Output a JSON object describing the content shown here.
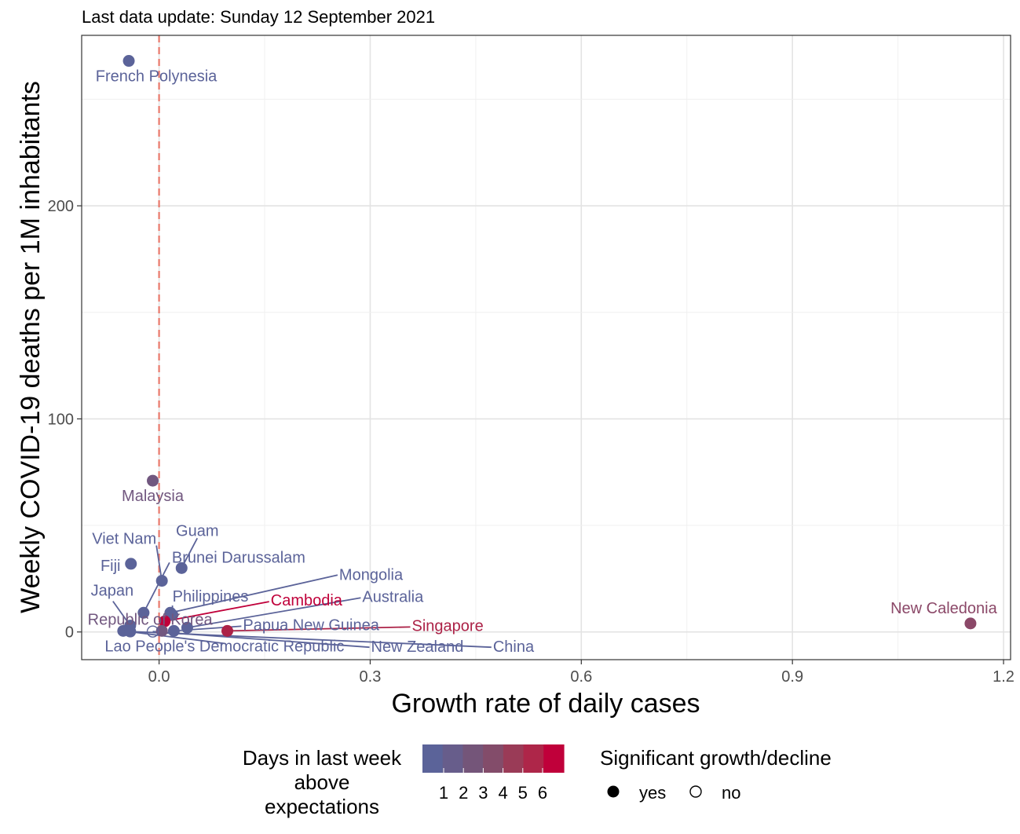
{
  "chart_data": {
    "type": "scatter",
    "subtitle": "Last data update: Sunday 12 September 2021",
    "xlabel": "Growth rate of daily cases",
    "ylabel": "Weekly COVID-19 deaths per 1M inhabitants",
    "xlim": [
      -0.11,
      1.21
    ],
    "ylim": [
      -13,
      280
    ],
    "x_ticks": [
      0.0,
      0.3,
      0.6,
      0.9,
      1.2
    ],
    "x_tick_labels": [
      "0.0",
      "0.3",
      "0.6",
      "0.9",
      "1.2"
    ],
    "y_ticks": [
      0,
      100,
      200
    ],
    "y_tick_labels": [
      "0",
      "100",
      "200"
    ],
    "grid": true,
    "reference_line": {
      "x": 0,
      "style": "dashed",
      "color": "#e8786b"
    },
    "points": [
      {
        "name": "French Polynesia",
        "x": -0.043,
        "y": 268,
        "days": 1,
        "significant": true,
        "color": "#5b6399"
      },
      {
        "name": "Malaysia",
        "x": -0.009,
        "y": 71,
        "days": 2,
        "significant": true,
        "color": "#71577f"
      },
      {
        "name": "Guam",
        "x": 0.032,
        "y": 30,
        "days": 1,
        "significant": true,
        "color": "#5b6399"
      },
      {
        "name": "Fiji",
        "x": -0.04,
        "y": 32,
        "days": 1,
        "significant": true,
        "color": "#5b6399"
      },
      {
        "name": "Viet Nam",
        "x": 0.004,
        "y": 24,
        "days": 1,
        "significant": true,
        "color": "#5b6399"
      },
      {
        "name": "Brunei Darussalam",
        "x": -0.022,
        "y": 9,
        "days": 1,
        "significant": true,
        "color": "#5b6399"
      },
      {
        "name": "Mongolia",
        "x": 0.016,
        "y": 9,
        "days": 1,
        "significant": true,
        "color": "#5b6399"
      },
      {
        "name": "Philippines",
        "x": 0.019,
        "y": 8,
        "days": 1,
        "significant": true,
        "color": "#5b6399"
      },
      {
        "name": "Cambodia",
        "x": 0.008,
        "y": 5,
        "days": 6,
        "significant": true,
        "color": "#c0003a"
      },
      {
        "name": "Japan",
        "x": -0.041,
        "y": 3,
        "days": 1,
        "significant": true,
        "color": "#5b6399"
      },
      {
        "name": "Republic of Korea",
        "x": 0.004,
        "y": 0.5,
        "days": 2,
        "significant": true,
        "color": "#71577f"
      },
      {
        "name": "Australia",
        "x": 0.04,
        "y": 2,
        "days": 1,
        "significant": true,
        "color": "#5b6399"
      },
      {
        "name": "Papua New Guinea",
        "x": 0.021,
        "y": 0.5,
        "days": 1,
        "significant": true,
        "color": "#5b6399"
      },
      {
        "name": "Singapore",
        "x": 0.097,
        "y": 0.5,
        "days": 5,
        "significant": true,
        "color": "#ac2247"
      },
      {
        "name": "Lao People's Democratic Republic",
        "x": -0.051,
        "y": 0.5,
        "days": 1,
        "significant": true,
        "color": "#5b6399"
      },
      {
        "name": "New Zealand",
        "x": -0.009,
        "y": 0.2,
        "days": 1,
        "significant": false,
        "color": "#5b6399"
      },
      {
        "name": "China",
        "x": -0.041,
        "y": 0.2,
        "days": 1,
        "significant": true,
        "color": "#5b6399"
      },
      {
        "name": "New Caledonia",
        "x": 1.153,
        "y": 4,
        "days": 3,
        "significant": true,
        "color": "#8b4868"
      }
    ],
    "legend_days": {
      "title_lines": [
        "Days in last week",
        "above",
        "expectations"
      ],
      "labels": [
        "1",
        "2",
        "3",
        "4",
        "5",
        "6"
      ],
      "colors": [
        "#5b6399",
        "#675d8b",
        "#745579",
        "#834c6a",
        "#9a3b57",
        "#ae2649",
        "#c0003a"
      ]
    },
    "legend_significance": {
      "title": "Significant growth/decline",
      "items": [
        "yes",
        "no"
      ]
    }
  }
}
